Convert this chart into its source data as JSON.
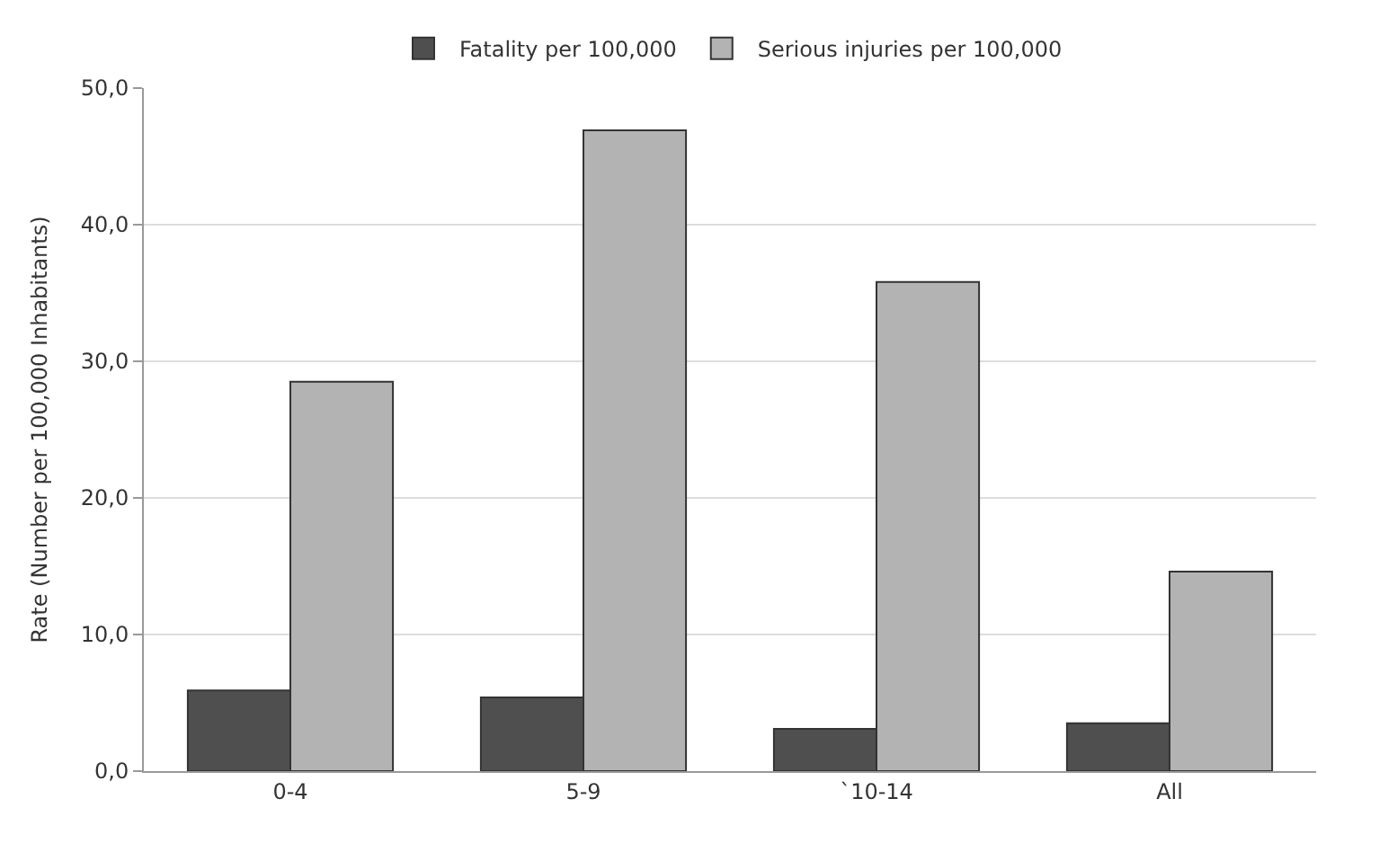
{
  "chart_data": {
    "type": "bar",
    "ylabel": "Rate (Number per 100,000 Inhabitants)",
    "categories": [
      "0-4",
      "5-9",
      "`10-14",
      "All"
    ],
    "series": [
      {
        "name": "Fatality per 100,000",
        "color": "#4f4f4f",
        "values": [
          5.9,
          5.4,
          3.1,
          3.5
        ]
      },
      {
        "name": "Serious injuries per 100,000",
        "color": "#b3b3b3",
        "values": [
          28.5,
          46.9,
          35.8,
          14.6
        ]
      }
    ],
    "ylim": [
      0,
      50
    ],
    "yticks": [
      {
        "value": 0,
        "label": "0,0"
      },
      {
        "value": 10,
        "label": "10,0"
      },
      {
        "value": 20,
        "label": "20,0"
      },
      {
        "value": 30,
        "label": "30,0"
      },
      {
        "value": 40,
        "label": "40,0"
      },
      {
        "value": 50,
        "label": "50,0"
      }
    ],
    "grid": "y",
    "legend": "top"
  }
}
